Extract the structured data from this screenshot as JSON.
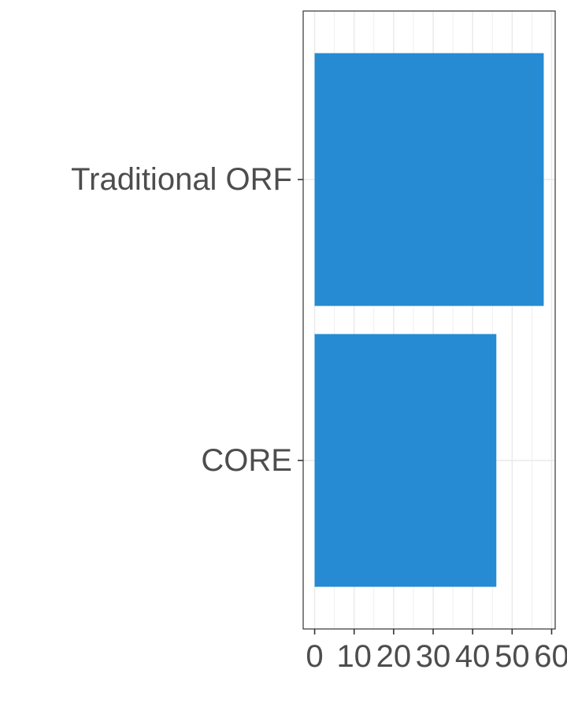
{
  "chart_data": {
    "type": "bar",
    "orientation": "horizontal",
    "categories": [
      "Traditional ORF",
      "CORE"
    ],
    "values": [
      58,
      46
    ],
    "xlim": [
      -2.9,
      60.9
    ],
    "x_ticks": [
      0,
      10,
      20,
      30,
      40,
      50,
      60
    ],
    "x_tick_labels": [
      "0",
      "10",
      "20",
      "30",
      "40",
      "50",
      "60"
    ],
    "title": "",
    "xlabel": "",
    "ylabel": "",
    "grid": true,
    "legend": "none",
    "colors": {
      "bar": "#268bd2",
      "grid": "#ebebeb",
      "axis": "#333333",
      "text": "#4d4d4d",
      "background": "#ffffff"
    }
  }
}
